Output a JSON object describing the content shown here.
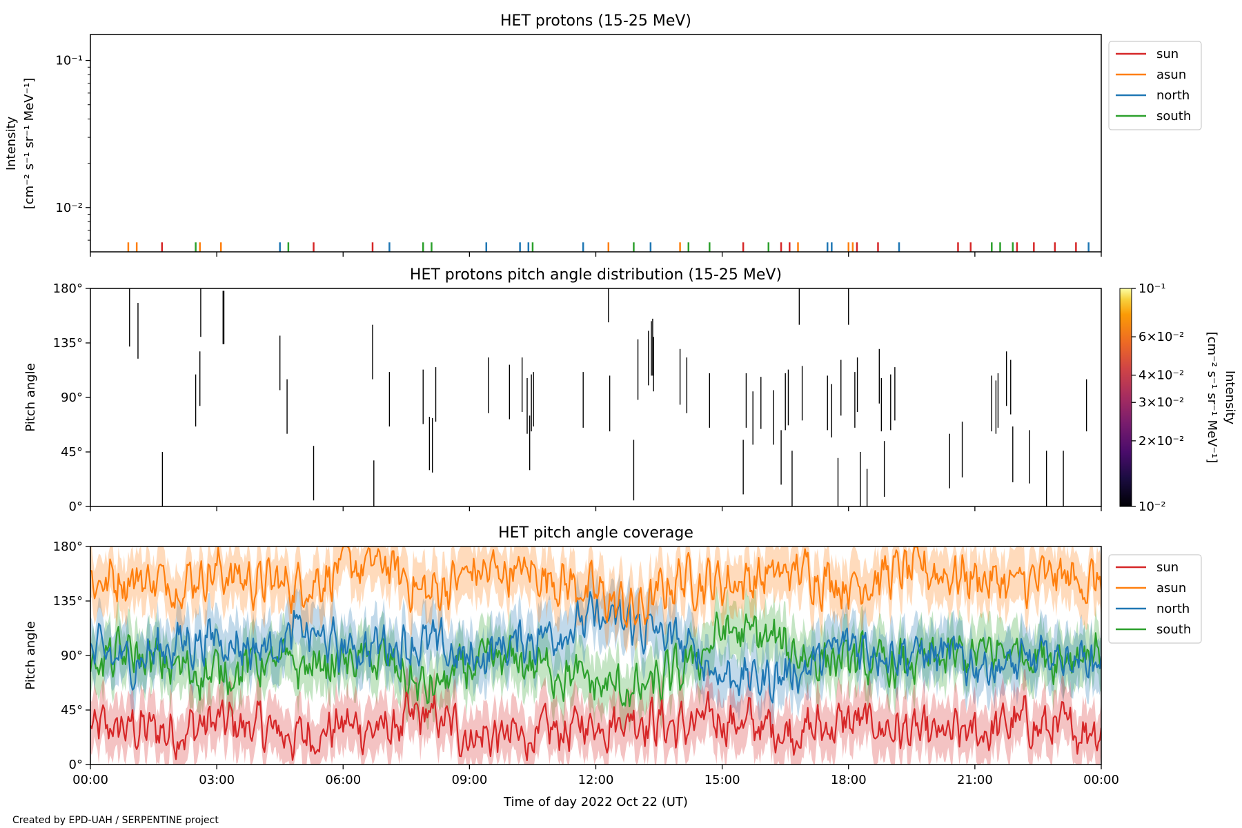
{
  "footer": {
    "credit": "Created by EPD-UAH / SERPENTINE project"
  },
  "colors": {
    "sun": "#d62728",
    "asun": "#ff7f0e",
    "north": "#1f77b4",
    "south": "#2ca02c"
  },
  "chart_data": [
    {
      "id": "intensity",
      "type": "line",
      "title": "HET protons (15-25 MeV)",
      "ylabel_lines": [
        "Intensity",
        "[cm⁻² s⁻¹ sr⁻¹ MeV⁻¹]"
      ],
      "yscale": "log",
      "ylim": [
        0.005,
        0.15
      ],
      "ytick_labels": [
        "10⁻²",
        "10⁻¹"
      ],
      "ytick_values": [
        0.01,
        0.1
      ],
      "xlim_hours": [
        0,
        24
      ],
      "legend": [
        "sun",
        "asun",
        "north",
        "south"
      ],
      "legend_position": "outside-upper-right",
      "series": [
        {
          "name": "sun",
          "color": "#d62728",
          "spike_hours": [
            1.7,
            5.3,
            6.7,
            15.5,
            16.4,
            16.6,
            18.2,
            18.7,
            20.6,
            20.9,
            22.0,
            22.4,
            22.9,
            23.4
          ]
        },
        {
          "name": "asun",
          "color": "#ff7f0e",
          "spike_hours": [
            0.9,
            1.1,
            2.6,
            3.1,
            12.3,
            14.0,
            16.8,
            18.0,
            18.1
          ]
        },
        {
          "name": "north",
          "color": "#1f77b4",
          "spike_hours": [
            4.5,
            7.1,
            9.4,
            10.2,
            10.4,
            11.7,
            13.3,
            17.5,
            17.6,
            19.2,
            23.7
          ]
        },
        {
          "name": "south",
          "color": "#2ca02c",
          "spike_hours": [
            2.5,
            4.7,
            7.9,
            8.1,
            10.5,
            12.9,
            14.2,
            14.7,
            16.1,
            21.4,
            21.6,
            21.9
          ]
        }
      ]
    },
    {
      "id": "pad",
      "type": "heatmap",
      "title": "HET protons pitch angle distribution (15-25 MeV)",
      "ylabel": "Pitch angle",
      "ylim": [
        0,
        180
      ],
      "ytick_labels": [
        "0°",
        "45°",
        "90°",
        "135°",
        "180°"
      ],
      "xlim_hours": [
        0,
        24
      ],
      "colorbar": {
        "label": "Intensity",
        "units": "[cm⁻² s⁻¹ sr⁻¹ MeV⁻¹]",
        "scale": "log",
        "range": [
          0.01,
          0.1
        ],
        "tick_labels": [
          "10⁻²",
          "2×10⁻²",
          "3×10⁻²",
          "4×10⁻²",
          "6×10⁻²",
          "10⁻¹"
        ],
        "tick_values": [
          0.01,
          0.02,
          0.03,
          0.04,
          0.06,
          0.1
        ],
        "colormap": "inferno"
      },
      "segments": [
        [
          0.93,
          132,
          180
        ],
        [
          1.13,
          122,
          168
        ],
        [
          1.71,
          0,
          45
        ],
        [
          2.5,
          66,
          109
        ],
        [
          2.6,
          83,
          128
        ],
        [
          2.62,
          140,
          180
        ],
        [
          3.15,
          134,
          178
        ],
        [
          3.17,
          134,
          178
        ],
        [
          4.5,
          96,
          141
        ],
        [
          4.67,
          60,
          105
        ],
        [
          5.3,
          5,
          50
        ],
        [
          6.7,
          105,
          150
        ],
        [
          6.73,
          0,
          38
        ],
        [
          7.1,
          66,
          111
        ],
        [
          7.9,
          68,
          113
        ],
        [
          8.05,
          30,
          74
        ],
        [
          8.12,
          28,
          73
        ],
        [
          8.2,
          70,
          115
        ],
        [
          9.45,
          77,
          123
        ],
        [
          9.95,
          72,
          117
        ],
        [
          10.25,
          78,
          123
        ],
        [
          10.37,
          60,
          106
        ],
        [
          10.43,
          30,
          75
        ],
        [
          10.47,
          62,
          109
        ],
        [
          10.52,
          66,
          111
        ],
        [
          11.7,
          65,
          111
        ],
        [
          12.3,
          152,
          180
        ],
        [
          12.33,
          62,
          108
        ],
        [
          12.9,
          5,
          55
        ],
        [
          13.0,
          88,
          138
        ],
        [
          13.25,
          100,
          145
        ],
        [
          13.32,
          108,
          153
        ],
        [
          13.35,
          108,
          155
        ],
        [
          13.37,
          95,
          140
        ],
        [
          14.0,
          84,
          130
        ],
        [
          14.16,
          77,
          123
        ],
        [
          14.7,
          65,
          110
        ],
        [
          15.5,
          10,
          55
        ],
        [
          15.57,
          65,
          110
        ],
        [
          15.73,
          51,
          95
        ],
        [
          15.92,
          64,
          107
        ],
        [
          16.22,
          51,
          96
        ],
        [
          16.4,
          18,
          63
        ],
        [
          16.5,
          63,
          110
        ],
        [
          16.57,
          67,
          113
        ],
        [
          16.66,
          0,
          46
        ],
        [
          16.83,
          150,
          180
        ],
        [
          16.9,
          71,
          116
        ],
        [
          17.5,
          63,
          108
        ],
        [
          17.6,
          57,
          101
        ],
        [
          17.75,
          0,
          40
        ],
        [
          17.82,
          75,
          121
        ],
        [
          18.0,
          150,
          180
        ],
        [
          18.15,
          65,
          111
        ],
        [
          18.21,
          78,
          123
        ],
        [
          18.28,
          0,
          45
        ],
        [
          18.44,
          0,
          31
        ],
        [
          18.73,
          85,
          130
        ],
        [
          18.78,
          62,
          106
        ],
        [
          18.85,
          8,
          54
        ],
        [
          19.0,
          63,
          109
        ],
        [
          19.1,
          71,
          115
        ],
        [
          20.4,
          15,
          60
        ],
        [
          20.7,
          24,
          70
        ],
        [
          21.4,
          62,
          108
        ],
        [
          21.5,
          60,
          104
        ],
        [
          21.55,
          65,
          110
        ],
        [
          21.75,
          83,
          128
        ],
        [
          21.85,
          76,
          121
        ],
        [
          21.9,
          20,
          66
        ],
        [
          22.3,
          19,
          63
        ],
        [
          22.7,
          0,
          46
        ],
        [
          23.1,
          0,
          46
        ],
        [
          23.65,
          62,
          105
        ]
      ]
    },
    {
      "id": "coverage",
      "type": "area",
      "title": "HET pitch angle coverage",
      "ylabel": "Pitch angle",
      "xlabel": "Time of day 2022 Oct 22 (UT)",
      "ylim": [
        0,
        180
      ],
      "ytick_labels": [
        "0°",
        "45°",
        "90°",
        "135°",
        "180°"
      ],
      "xlim_hours": [
        0,
        24
      ],
      "xtick_labels": [
        "00:00",
        "03:00",
        "06:00",
        "09:00",
        "12:00",
        "15:00",
        "18:00",
        "21:00",
        "00:00"
      ],
      "legend": [
        "sun",
        "asun",
        "north",
        "south"
      ],
      "legend_position": "outside-upper-right",
      "band_halfwidth_deg": 22,
      "series": [
        {
          "name": "sun",
          "color": "#d62728",
          "hours": [
            0,
            1,
            2,
            3,
            4,
            5,
            6,
            7,
            8,
            9,
            10,
            11,
            12,
            13,
            14,
            15,
            16,
            17,
            18,
            19,
            20,
            21,
            22,
            23,
            24
          ],
          "pitch_angle": [
            28,
            30,
            27,
            35,
            30,
            22,
            33,
            28,
            40,
            25,
            22,
            25,
            35,
            40,
            30,
            38,
            30,
            28,
            35,
            30,
            22,
            25,
            35,
            28,
            32
          ]
        },
        {
          "name": "asun",
          "color": "#ff7f0e",
          "hours": [
            0,
            1,
            2,
            3,
            4,
            5,
            6,
            7,
            8,
            9,
            10,
            11,
            12,
            13,
            14,
            15,
            16,
            17,
            18,
            19,
            20,
            21,
            22,
            23,
            24
          ],
          "pitch_angle": [
            150,
            155,
            150,
            160,
            150,
            148,
            162,
            165,
            140,
            158,
            160,
            155,
            140,
            125,
            155,
            150,
            155,
            160,
            148,
            158,
            160,
            155,
            148,
            155,
            150
          ]
        },
        {
          "name": "north",
          "color": "#1f77b4",
          "hours": [
            0,
            1,
            2,
            3,
            4,
            5,
            6,
            7,
            8,
            9,
            10,
            11,
            12,
            13,
            14,
            15,
            16,
            17,
            18,
            19,
            20,
            21,
            22,
            23,
            24
          ],
          "pitch_angle": [
            90,
            85,
            100,
            105,
            95,
            110,
            95,
            100,
            100,
            85,
            100,
            110,
            120,
            115,
            100,
            75,
            70,
            80,
            100,
            95,
            90,
            85,
            80,
            90,
            85
          ]
        },
        {
          "name": "south",
          "color": "#2ca02c",
          "hours": [
            0,
            1,
            2,
            3,
            4,
            5,
            6,
            7,
            8,
            9,
            10,
            11,
            12,
            13,
            14,
            15,
            16,
            17,
            18,
            19,
            20,
            21,
            22,
            23,
            24
          ],
          "pitch_angle": [
            85,
            90,
            80,
            75,
            85,
            80,
            85,
            85,
            60,
            80,
            85,
            80,
            65,
            60,
            75,
            110,
            105,
            90,
            85,
            80,
            85,
            90,
            95,
            90,
            95
          ]
        }
      ]
    }
  ]
}
